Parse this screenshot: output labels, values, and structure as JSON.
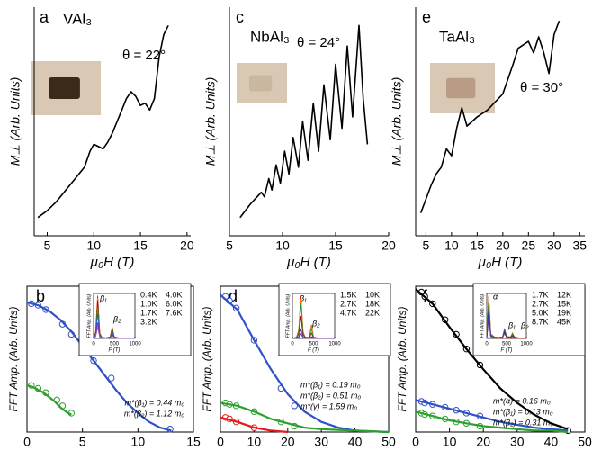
{
  "chart_data": [
    {
      "type": "line",
      "label": "a",
      "compound": "VAl₃",
      "angle": "θ = 22°",
      "xlabel": "μ₀H (T)",
      "ylabel": "M⊥ (Arb. Units)",
      "xlim": [
        3.6,
        20.4
      ],
      "xticks": [
        5,
        10,
        15,
        20
      ],
      "ylim": [
        0,
        100
      ],
      "series": [
        {
          "color": "#000000",
          "style": "line",
          "x": [
            4,
            5,
            6,
            7,
            8,
            9,
            9.6,
            10,
            10.5,
            11,
            11.5,
            12,
            12.5,
            13,
            13.5,
            14,
            14.5,
            15,
            15.5,
            16,
            16.5,
            17,
            17.5,
            18
          ],
          "values": [
            8,
            11,
            15,
            20,
            25,
            30,
            37,
            40,
            39,
            38,
            41,
            45,
            50,
            55,
            60,
            63,
            61,
            57,
            58,
            55,
            60,
            78,
            88,
            92
          ]
        }
      ]
    },
    {
      "type": "line",
      "label": "c",
      "compound": "NbAl₃",
      "angle": "θ = 24°",
      "xlabel": "μ₀H (T)",
      "ylabel": "M⊥ (Arb. Units)",
      "xlim": [
        5,
        20
      ],
      "xticks": [
        5,
        10,
        15,
        20
      ],
      "ylim": [
        0,
        100
      ],
      "series": [
        {
          "color": "#000000",
          "style": "line",
          "x": [
            6,
            7,
            8,
            8.3,
            8.7,
            9,
            9.4,
            9.8,
            10.2,
            10.6,
            11,
            11.5,
            11.9,
            12.4,
            12.9,
            13.4,
            13.9,
            14.5,
            15,
            15.6,
            16.1,
            16.6,
            17.2,
            17.6,
            18
          ],
          "values": [
            8,
            14,
            19,
            17,
            25,
            20,
            31,
            23,
            37,
            27,
            43,
            30,
            50,
            33,
            58,
            37,
            66,
            42,
            75,
            47,
            83,
            52,
            92,
            60,
            40
          ]
        }
      ]
    },
    {
      "type": "line",
      "label": "e",
      "compound": "TaAl₃",
      "angle": "θ = 30°",
      "xlabel": "μ₀H (T)",
      "ylabel": "M⊥ (Arb. Units)",
      "xlim": [
        3,
        36
      ],
      "xticks": [
        5,
        10,
        15,
        20,
        25,
        30,
        35
      ],
      "ylim": [
        0,
        100
      ],
      "series": [
        {
          "color": "#000000",
          "style": "line",
          "x": [
            4,
            6,
            7,
            8,
            9,
            10,
            11,
            12,
            13,
            15,
            17,
            20,
            22,
            23,
            25,
            26,
            27,
            28,
            29,
            30,
            31
          ],
          "values": [
            10,
            22,
            27,
            30,
            38,
            35,
            47,
            56,
            48,
            52,
            55,
            62,
            75,
            82,
            85,
            80,
            87,
            80,
            71,
            88,
            94
          ]
        }
      ]
    },
    {
      "type": "line",
      "label": "b",
      "xlabel": "T (K)",
      "ylabel": "FFT Amp. (Arb. Units)",
      "xlim": [
        0,
        15
      ],
      "xticks": [
        0,
        5,
        10,
        15
      ],
      "ylim": [
        0,
        100
      ],
      "series": [
        {
          "color": "#3050c8",
          "style": "markers",
          "x": [
            0.4,
            1.0,
            1.7,
            3.2,
            4.0,
            6.0,
            7.6,
            12.9
          ],
          "values": [
            88,
            87,
            84,
            74,
            67,
            49,
            37,
            2
          ]
        },
        {
          "name": "m*(β₁) = 0.44 m₀",
          "color": "#3050c8",
          "style": "line",
          "x": [
            0,
            1,
            2,
            3,
            4,
            5,
            6,
            7,
            8,
            9,
            10,
            11,
            12,
            13
          ],
          "values": [
            89,
            87,
            83,
            77,
            69,
            59,
            49,
            39,
            29,
            20,
            13,
            7,
            3,
            1
          ]
        },
        {
          "color": "#2ca02c",
          "style": "markers",
          "x": [
            0.4,
            1.0,
            1.7,
            2.7,
            3.2,
            4.0
          ],
          "values": [
            32,
            30,
            27,
            22,
            18,
            13
          ]
        },
        {
          "name": "m*(β₂) = 1.12 m₀",
          "color": "#2ca02c",
          "style": "line",
          "x": [
            0,
            0.5,
            1,
            1.5,
            2,
            2.5,
            3,
            3.5,
            4
          ],
          "values": [
            32,
            31,
            29,
            27,
            24,
            21,
            17,
            14,
            12
          ]
        }
      ]
    },
    {
      "type": "line",
      "label": "d",
      "xlabel": "T (K)",
      "ylabel": "FFT Amp. (Arb. Units)",
      "xlim": [
        0,
        50
      ],
      "xticks": [
        0,
        10,
        20,
        30,
        40,
        50
      ],
      "ylim": [
        0,
        100
      ],
      "series": [
        {
          "color": "#3050c8",
          "style": "markers",
          "x": [
            1.5,
            2.7,
            4.7,
            10,
            18,
            22
          ],
          "values": [
            93,
            90,
            85,
            63,
            30,
            18
          ]
        },
        {
          "name": "m*(β₁) = 0.19 m₀",
          "color": "#3050c8",
          "style": "line",
          "x": [
            0,
            5,
            10,
            15,
            20,
            25,
            30,
            35,
            40,
            45,
            50
          ],
          "values": [
            94,
            84,
            63,
            43,
            26,
            14,
            7,
            3,
            1,
            0.5,
            0
          ]
        },
        {
          "color": "#2ca02c",
          "style": "markers",
          "x": [
            1.5,
            2.7,
            4.7,
            10,
            18,
            22
          ],
          "values": [
            20,
            19,
            18,
            14,
            7,
            4
          ]
        },
        {
          "name": "m*(β₂) = 0.51 m₀",
          "color": "#2ca02c",
          "style": "line",
          "x": [
            0,
            5,
            10,
            15,
            20,
            25,
            30,
            40,
            50
          ],
          "values": [
            20,
            18,
            14,
            9,
            6,
            3,
            2,
            1,
            0
          ]
        },
        {
          "color": "#e41a1c",
          "style": "markers",
          "x": [
            1.5,
            2.7,
            4.7,
            10
          ],
          "values": [
            10,
            9,
            7,
            3
          ]
        },
        {
          "name": "m*(γ) = 1.59 m₀",
          "color": "#e41a1c",
          "style": "line",
          "x": [
            0,
            5,
            10,
            15,
            20
          ],
          "values": [
            10,
            7,
            3,
            1,
            0
          ]
        }
      ]
    },
    {
      "type": "line",
      "label": "f",
      "xlabel": "T (K)",
      "ylabel": "FFT Amp. (Arb. Units)",
      "xlim": [
        0,
        50
      ],
      "xticks": [
        0,
        10,
        20,
        30,
        40,
        50
      ],
      "ylim": [
        0,
        100
      ],
      "series": [
        {
          "color": "#000000",
          "style": "markers",
          "x": [
            1.7,
            2.7,
            5,
            8.7,
            12,
            15,
            19,
            45
          ],
          "values": [
            96,
            93,
            88,
            77,
            67,
            57,
            46,
            1
          ]
        },
        {
          "name": "m*(α) = 0.16 m₀",
          "color": "#000000",
          "style": "line",
          "x": [
            0,
            5,
            10,
            15,
            20,
            25,
            30,
            35,
            40,
            45
          ],
          "values": [
            98,
            88,
            72,
            57,
            43,
            30,
            20,
            12,
            6,
            2
          ]
        },
        {
          "color": "#3050c8",
          "style": "markers",
          "x": [
            1.7,
            2.7,
            5,
            8.7,
            12,
            15,
            19
          ],
          "values": [
            21,
            20,
            19,
            17,
            15,
            13,
            11
          ]
        },
        {
          "name": "m*(β₁) = 0.13 m₀",
          "color": "#3050c8",
          "style": "line",
          "x": [
            0,
            5,
            10,
            15,
            20,
            25,
            30,
            35,
            40,
            45
          ],
          "values": [
            22,
            19,
            16,
            13,
            10,
            7,
            5,
            3,
            2,
            1
          ]
        },
        {
          "color": "#2ca02c",
          "style": "markers",
          "x": [
            1.7,
            2.7,
            5,
            8.7,
            12,
            15,
            19
          ],
          "values": [
            13,
            12,
            11,
            9,
            7,
            6,
            4
          ]
        },
        {
          "name": "m*(β₂) = 0.31 m₀",
          "color": "#2ca02c",
          "style": "line",
          "x": [
            0,
            5,
            10,
            15,
            20,
            25,
            30,
            35,
            40,
            45
          ],
          "values": [
            14,
            11,
            8,
            6,
            4,
            3,
            2,
            1,
            1,
            0
          ]
        }
      ]
    },
    {
      "type": "inset",
      "xlabel": "F (T)",
      "ylabel": "FFT Amp. (Arb. Units)",
      "annotations": [
        "β₁",
        "β₂"
      ],
      "xlim": [
        0,
        1000
      ],
      "xticks": [
        0,
        500,
        1000
      ],
      "ylim": [
        0,
        100
      ],
      "x": [
        0,
        50,
        100,
        150,
        200,
        300,
        400,
        450,
        500,
        600,
        800,
        1000
      ],
      "series": [
        {
          "name": "0.4K",
          "color": "#e41a1c",
          "values": [
            0,
            15,
            95,
            12,
            2,
            1,
            3,
            25,
            3,
            1,
            0,
            0
          ]
        },
        {
          "name": "1.0K",
          "color": "#ff7f00",
          "values": [
            0,
            14,
            90,
            11,
            2,
            1,
            3,
            24,
            3,
            1,
            0,
            0
          ]
        },
        {
          "name": "1.7K",
          "color": "#8b1a1a",
          "values": [
            0,
            13,
            85,
            10,
            2,
            1,
            3,
            22,
            3,
            1,
            0,
            0
          ]
        },
        {
          "name": "3.2K",
          "color": "#2ca02c",
          "values": [
            0,
            11,
            70,
            8,
            2,
            1,
            2,
            18,
            2,
            1,
            0,
            0
          ]
        },
        {
          "name": "4.0K",
          "color": "#3050c8",
          "values": [
            0,
            9,
            55,
            7,
            1,
            1,
            2,
            14,
            2,
            1,
            0,
            0
          ]
        },
        {
          "name": "6.0K",
          "color": "#7030a0",
          "values": [
            0,
            6,
            35,
            4,
            1,
            1,
            1,
            9,
            1,
            0,
            0,
            0
          ]
        },
        {
          "name": "7.6K",
          "color": "#9060c0",
          "values": [
            0,
            4,
            25,
            3,
            1,
            0,
            1,
            6,
            1,
            0,
            0,
            0
          ]
        }
      ]
    },
    {
      "type": "inset",
      "xlabel": "F (T)",
      "ylabel": "FFT Amp. (Arb. Units)",
      "annotations": [
        "β₁",
        "β₂"
      ],
      "xlim": [
        0,
        1000
      ],
      "xticks": [
        0,
        500,
        1000
      ],
      "ylim": [
        0,
        100
      ],
      "x": [
        0,
        100,
        150,
        200,
        250,
        300,
        400,
        450,
        500,
        600,
        800,
        1000
      ],
      "series": [
        {
          "name": "1.5K",
          "color": "#e41a1c",
          "values": [
            0,
            3,
            20,
            95,
            15,
            3,
            2,
            30,
            3,
            1,
            0,
            0
          ]
        },
        {
          "name": "2.7K",
          "color": "#ff7f00",
          "values": [
            0,
            3,
            18,
            88,
            14,
            3,
            2,
            28,
            3,
            1,
            0,
            0
          ]
        },
        {
          "name": "4.7K",
          "color": "#2ca02c",
          "values": [
            0,
            3,
            16,
            78,
            12,
            2,
            2,
            22,
            2,
            1,
            0,
            0
          ]
        },
        {
          "name": "10K",
          "color": "#8b1a1a",
          "values": [
            0,
            2,
            10,
            50,
            8,
            2,
            1,
            12,
            1,
            0,
            0,
            0
          ]
        },
        {
          "name": "18K",
          "color": "#3050c8",
          "values": [
            0,
            1,
            4,
            20,
            3,
            1,
            1,
            4,
            1,
            0,
            0,
            0
          ]
        },
        {
          "name": "22K",
          "color": "#7030a0",
          "values": [
            0,
            1,
            2,
            10,
            2,
            0,
            0,
            2,
            0,
            0,
            0,
            0
          ]
        }
      ]
    },
    {
      "type": "inset",
      "xlabel": "F (T)",
      "ylabel": "FFT Amp. (Arb. Units)",
      "annotations": [
        "α",
        "β₁",
        "β₂"
      ],
      "xlim": [
        0,
        1000
      ],
      "xticks": [
        0,
        500,
        1000
      ],
      "ylim": [
        0,
        100
      ],
      "x": [
        0,
        50,
        100,
        200,
        300,
        400,
        450,
        500,
        600,
        650,
        700,
        800,
        1000
      ],
      "series": [
        {
          "name": "1.7K",
          "color": "#e41a1c",
          "values": [
            0,
            95,
            10,
            3,
            2,
            3,
            22,
            4,
            3,
            12,
            3,
            1,
            0
          ]
        },
        {
          "name": "2.7K",
          "color": "#ff7f00",
          "values": [
            0,
            90,
            9,
            3,
            2,
            3,
            21,
            4,
            3,
            11,
            3,
            1,
            0
          ]
        },
        {
          "name": "5.0K",
          "color": "#2ca02c",
          "values": [
            0,
            85,
            8,
            3,
            2,
            3,
            20,
            4,
            3,
            10,
            3,
            1,
            0
          ]
        },
        {
          "name": "8.7K",
          "color": "#1e7a1e",
          "values": [
            0,
            75,
            7,
            2,
            2,
            3,
            18,
            3,
            2,
            8,
            2,
            1,
            0
          ]
        },
        {
          "name": "12K",
          "color": "#3050c8",
          "values": [
            0,
            65,
            6,
            2,
            1,
            2,
            16,
            3,
            2,
            7,
            2,
            1,
            0
          ]
        },
        {
          "name": "15K",
          "color": "#1f2f80",
          "values": [
            0,
            55,
            5,
            2,
            1,
            2,
            14,
            3,
            2,
            5,
            2,
            0,
            0
          ]
        },
        {
          "name": "19K",
          "color": "#7030a0",
          "values": [
            0,
            45,
            4,
            2,
            1,
            2,
            11,
            2,
            1,
            4,
            1,
            0,
            0
          ]
        },
        {
          "name": "45K",
          "color": "#8b1a1a",
          "values": [
            0,
            2,
            1,
            0,
            0,
            0,
            1,
            0,
            0,
            0,
            0,
            0,
            0
          ]
        }
      ]
    }
  ]
}
